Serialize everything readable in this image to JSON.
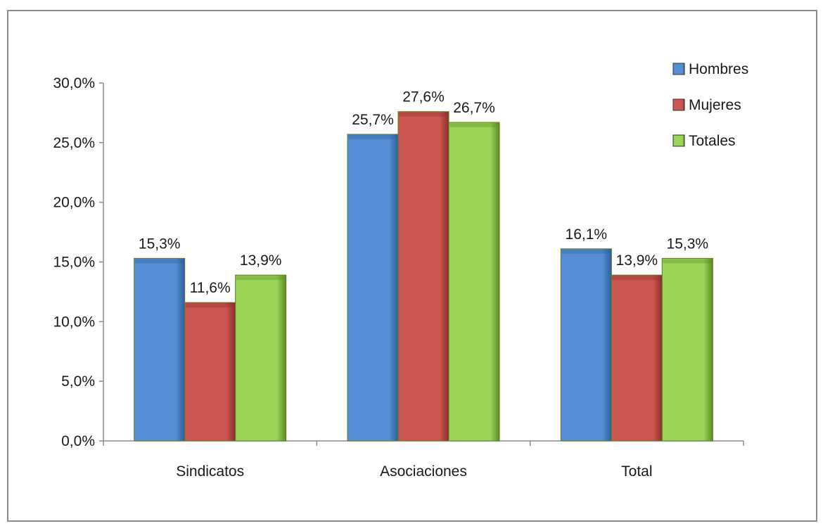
{
  "chart_data": {
    "type": "bar",
    "categories": [
      "Sindicatos",
      "Asociaciones",
      "Total"
    ],
    "series": [
      {
        "name": "Hombres",
        "values": [
          15.3,
          25.7,
          16.1
        ],
        "labels": [
          "15,3%",
          "25,7%",
          "16,1%"
        ],
        "color": "#558ed5",
        "dark": "#2f5f99"
      },
      {
        "name": "Mujeres",
        "values": [
          11.6,
          27.6,
          13.9
        ],
        "labels": [
          "11,6%",
          "27,6%",
          "13,9%"
        ],
        "color": "#cc5552",
        "dark": "#8a2d2b"
      },
      {
        "name": "Totales",
        "values": [
          13.9,
          26.7,
          15.3
        ],
        "labels": [
          "13,9%",
          "26,7%",
          "15,3%"
        ],
        "color": "#9bd457",
        "dark": "#5c8a22"
      }
    ],
    "y_ticks": [
      "0,0%",
      "5,0%",
      "10,0%",
      "15,0%",
      "20,0%",
      "25,0%",
      "30,0%"
    ],
    "y_tick_values": [
      0,
      5,
      10,
      15,
      20,
      25,
      30
    ],
    "ylim": [
      0,
      30
    ],
    "grid": false,
    "legend": "top-right"
  }
}
